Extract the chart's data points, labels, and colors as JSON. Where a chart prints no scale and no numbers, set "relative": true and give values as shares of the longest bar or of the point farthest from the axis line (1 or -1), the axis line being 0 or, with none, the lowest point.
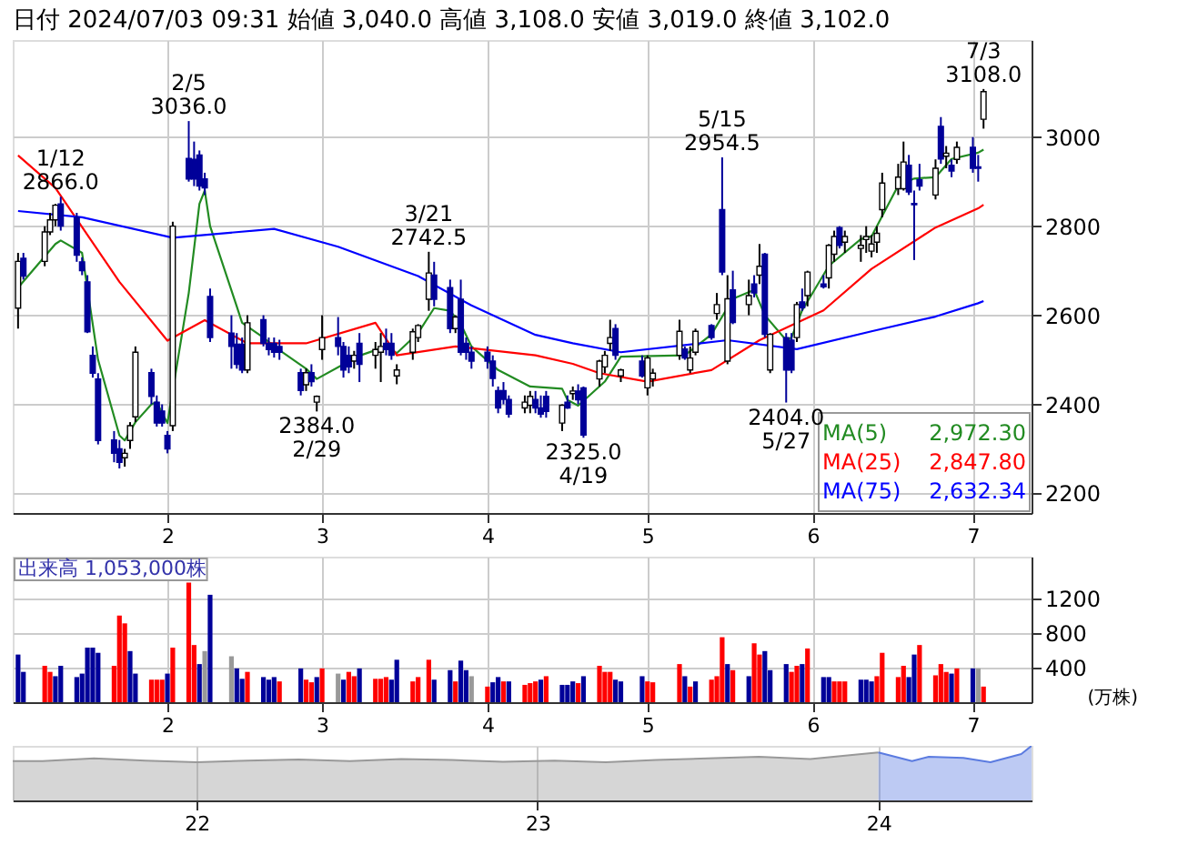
{
  "chart_data": [
    {
      "type": "candlestick",
      "title": "日付 2024/07/03 09:31 始値 3,040.0 高値 3,108.0 安値 3,019.0 終値 3,102.0",
      "x": [
        "2024-01-04",
        "2024-01-05",
        "2024-01-09",
        "2024-01-10",
        "2024-01-11",
        "2024-01-12",
        "2024-01-15",
        "2024-01-16",
        "2024-01-17",
        "2024-01-18",
        "2024-01-19",
        "2024-01-22",
        "2024-01-23",
        "2024-01-24",
        "2024-01-25",
        "2024-01-26",
        "2024-01-29",
        "2024-01-30",
        "2024-01-31",
        "2024-02-01",
        "2024-02-02",
        "2024-02-05",
        "2024-02-06",
        "2024-02-07",
        "2024-02-08",
        "2024-02-09",
        "2024-02-13",
        "2024-02-14",
        "2024-02-15",
        "2024-02-16",
        "2024-02-19",
        "2024-02-20",
        "2024-02-21",
        "2024-02-22",
        "2024-02-26",
        "2024-02-27",
        "2024-02-28",
        "2024-02-29",
        "2024-03-01",
        "2024-03-04",
        "2024-03-05",
        "2024-03-06",
        "2024-03-07",
        "2024-03-08",
        "2024-03-11",
        "2024-03-12",
        "2024-03-13",
        "2024-03-14",
        "2024-03-15",
        "2024-03-18",
        "2024-03-19",
        "2024-03-21",
        "2024-03-22",
        "2024-03-25",
        "2024-03-26",
        "2024-03-27",
        "2024-03-28",
        "2024-03-29",
        "2024-04-01",
        "2024-04-02",
        "2024-04-03",
        "2024-04-04",
        "2024-04-05",
        "2024-04-08",
        "2024-04-09",
        "2024-04-10",
        "2024-04-11",
        "2024-04-12",
        "2024-04-15",
        "2024-04-16",
        "2024-04-17",
        "2024-04-18",
        "2024-04-19",
        "2024-04-22",
        "2024-04-23",
        "2024-04-24",
        "2024-04-25",
        "2024-04-26",
        "2024-04-30",
        "2024-05-01",
        "2024-05-02",
        "2024-05-07",
        "2024-05-08",
        "2024-05-09",
        "2024-05-10",
        "2024-05-13",
        "2024-05-14",
        "2024-05-15",
        "2024-05-16",
        "2024-05-17",
        "2024-05-20",
        "2024-05-21",
        "2024-05-22",
        "2024-05-23",
        "2024-05-24",
        "2024-05-27",
        "2024-05-28",
        "2024-05-29",
        "2024-05-30",
        "2024-05-31",
        "2024-06-03",
        "2024-06-04",
        "2024-06-05",
        "2024-06-06",
        "2024-06-07",
        "2024-06-10",
        "2024-06-11",
        "2024-06-12",
        "2024-06-13",
        "2024-06-14",
        "2024-06-17",
        "2024-06-18",
        "2024-06-19",
        "2024-06-20",
        "2024-06-21",
        "2024-06-24",
        "2024-06-25",
        "2024-06-26",
        "2024-06-27",
        "2024-06-28",
        "2024-07-01",
        "2024-07-02",
        "2024-07-03"
      ],
      "ohlc": [
        [
          2616,
          2740,
          2570,
          2721
        ],
        [
          2728,
          2740,
          2680,
          2688
        ],
        [
          2721,
          2800,
          2710,
          2787
        ],
        [
          2787,
          2830,
          2780,
          2814
        ],
        [
          2814,
          2850,
          2800,
          2847
        ],
        [
          2850,
          2866,
          2790,
          2800
        ],
        [
          2820,
          2830,
          2720,
          2735
        ],
        [
          2720,
          2730,
          2690,
          2700
        ],
        [
          2675,
          2690,
          2560,
          2563
        ],
        [
          2510,
          2530,
          2460,
          2470
        ],
        [
          2457,
          2470,
          2310,
          2319
        ],
        [
          2320,
          2340,
          2270,
          2290
        ],
        [
          2300,
          2320,
          2256,
          2270
        ],
        [
          2280,
          2300,
          2260,
          2290
        ],
        [
          2319,
          2360,
          2300,
          2352
        ],
        [
          2372,
          2530,
          2360,
          2517
        ],
        [
          2471,
          2480,
          2400,
          2418
        ],
        [
          2405,
          2420,
          2350,
          2358
        ],
        [
          2385,
          2400,
          2350,
          2358
        ],
        [
          2330,
          2340,
          2290,
          2300
        ],
        [
          2352,
          2810,
          2340,
          2800
        ],
        [
          2952,
          3036,
          2900,
          2906
        ],
        [
          2950,
          2990,
          2890,
          2906
        ],
        [
          2960,
          2970,
          2880,
          2890
        ],
        [
          2906,
          2920,
          2870,
          2886
        ],
        [
          2642,
          2660,
          2540,
          2550
        ],
        [
          2560,
          2600,
          2480,
          2530
        ],
        [
          2535,
          2560,
          2480,
          2490
        ],
        [
          2535,
          2550,
          2470,
          2477
        ],
        [
          2477,
          2600,
          2470,
          2583
        ],
        [
          2590,
          2600,
          2530,
          2537
        ],
        [
          2537,
          2550,
          2510,
          2523
        ],
        [
          2537,
          2550,
          2505,
          2517
        ],
        [
          2530,
          2545,
          2500,
          2517
        ],
        [
          2471,
          2480,
          2420,
          2431
        ],
        [
          2444,
          2480,
          2430,
          2471
        ],
        [
          2471,
          2490,
          2440,
          2451
        ],
        [
          2405,
          2420,
          2384,
          2418
        ],
        [
          2523,
          2600,
          2500,
          2550
        ],
        [
          2550,
          2596,
          2510,
          2530
        ],
        [
          2530,
          2540,
          2460,
          2477
        ],
        [
          2510,
          2530,
          2470,
          2484
        ],
        [
          2497,
          2520,
          2480,
          2510
        ],
        [
          2537,
          2560,
          2450,
          2490
        ],
        [
          2510,
          2540,
          2480,
          2523
        ],
        [
          2517,
          2560,
          2450,
          2530
        ],
        [
          2537,
          2570,
          2510,
          2523
        ],
        [
          2537,
          2560,
          2500,
          2510
        ],
        [
          2464,
          2490,
          2445,
          2477
        ],
        [
          2517,
          2570,
          2500,
          2563
        ],
        [
          2550,
          2580,
          2540,
          2577
        ],
        [
          2636,
          2742.5,
          2610,
          2695
        ],
        [
          2690,
          2720,
          2620,
          2636
        ],
        [
          2662,
          2680,
          2560,
          2570
        ],
        [
          2570,
          2600,
          2560,
          2596
        ],
        [
          2636,
          2680,
          2510,
          2517
        ],
        [
          2537,
          2550,
          2500,
          2517
        ],
        [
          2517,
          2530,
          2480,
          2497
        ],
        [
          2517,
          2530,
          2480,
          2497
        ],
        [
          2497,
          2510,
          2440,
          2458
        ],
        [
          2431,
          2440,
          2380,
          2392
        ],
        [
          2431,
          2450,
          2400,
          2411
        ],
        [
          2411,
          2420,
          2370,
          2378
        ],
        [
          2392,
          2420,
          2380,
          2405
        ],
        [
          2398,
          2430,
          2380,
          2418
        ],
        [
          2411,
          2430,
          2380,
          2392
        ],
        [
          2392,
          2420,
          2370,
          2378
        ],
        [
          2418,
          2430,
          2370,
          2384
        ],
        [
          2358,
          2400,
          2340,
          2398
        ],
        [
          2405,
          2420,
          2390,
          2392
        ],
        [
          2424,
          2440,
          2410,
          2430
        ],
        [
          2430,
          2445,
          2400,
          2410
        ],
        [
          2437,
          2440,
          2325,
          2331
        ],
        [
          2457,
          2500,
          2440,
          2497
        ],
        [
          2484,
          2520,
          2470,
          2510
        ],
        [
          2537,
          2590,
          2520,
          2550
        ],
        [
          2570,
          2580,
          2500,
          2510
        ],
        [
          2464,
          2480,
          2450,
          2477
        ],
        [
          2497,
          2510,
          2460,
          2464
        ],
        [
          2437,
          2510,
          2420,
          2504
        ],
        [
          2457,
          2480,
          2440,
          2470
        ],
        [
          2510,
          2590,
          2500,
          2564
        ],
        [
          2524,
          2530,
          2500,
          2504
        ],
        [
          2477,
          2530,
          2470,
          2504
        ],
        [
          2517,
          2570,
          2510,
          2564
        ],
        [
          2577,
          2580,
          2545,
          2550
        ],
        [
          2604,
          2650,
          2590,
          2624
        ],
        [
          2837,
          2954.5,
          2690,
          2697
        ],
        [
          2497,
          2690,
          2490,
          2637
        ],
        [
          2657,
          2700,
          2580,
          2584
        ],
        [
          2624,
          2680,
          2600,
          2644
        ],
        [
          2670,
          2690,
          2640,
          2650
        ],
        [
          2690,
          2760,
          2670,
          2710
        ],
        [
          2737,
          2740,
          2550,
          2557
        ],
        [
          2477,
          2560,
          2470,
          2557
        ],
        [
          2550,
          2560,
          2404,
          2477
        ],
        [
          2544,
          2560,
          2470,
          2477
        ],
        [
          2550,
          2630,
          2540,
          2624
        ],
        [
          2630,
          2660,
          2610,
          2617
        ],
        [
          2644,
          2700,
          2620,
          2697
        ],
        [
          2670,
          2690,
          2660,
          2664
        ],
        [
          2684,
          2760,
          2660,
          2757
        ],
        [
          2737,
          2790,
          2720,
          2777
        ],
        [
          2797,
          2800,
          2750,
          2757
        ],
        [
          2764,
          2790,
          2740,
          2777
        ],
        [
          2750,
          2780,
          2720,
          2757
        ],
        [
          2770,
          2800,
          2740,
          2777
        ],
        [
          2744,
          2780,
          2730,
          2760
        ],
        [
          2764,
          2800,
          2740,
          2784
        ],
        [
          2837,
          2920,
          2820,
          2897
        ],
        [
          2884,
          2940,
          2870,
          2910
        ],
        [
          2884,
          2990,
          2880,
          2944
        ],
        [
          2937,
          2960,
          2870,
          2877
        ],
        [
          2851,
          2880,
          2724,
          2848
        ],
        [
          2904,
          2940,
          2880,
          2890
        ],
        [
          2870,
          2950,
          2860,
          2930
        ],
        [
          3024,
          3045,
          2940,
          2951
        ],
        [
          2957,
          2980,
          2930,
          2964
        ],
        [
          2937,
          2950,
          2910,
          2924
        ],
        [
          2950,
          2990,
          2940,
          2977
        ],
        [
          2977,
          3000,
          2920,
          2930
        ],
        [
          2933,
          2960,
          2900,
          2930
        ],
        [
          3040,
          3108,
          3019,
          3102
        ]
      ],
      "colors": [
        "#ffffff",
        "#000099",
        "#ffffff",
        "#ffffff",
        "#ffffff",
        "#000099",
        "#000099",
        "#000099",
        "#000099",
        "#000099",
        "#000099",
        "#000099",
        "#000099",
        "#ffffff",
        "#ffffff",
        "#ffffff",
        "#000099",
        "#000099",
        "#000099",
        "#000099",
        "#ffffff",
        "#000099",
        "#000099",
        "#000099",
        "#000099",
        "#000099",
        "#000099",
        "#000099",
        "#000099",
        "#ffffff",
        "#000099",
        "#000099",
        "#000099",
        "#000099",
        "#000099",
        "#ffffff",
        "#000099",
        "#ffffff",
        "#ffffff",
        "#000099",
        "#000099",
        "#000099",
        "#ffffff",
        "#000099",
        "#ffffff",
        "#ffffff",
        "#000099",
        "#000099",
        "#ffffff",
        "#ffffff",
        "#ffffff",
        "#ffffff",
        "#000099",
        "#000099",
        "#ffffff",
        "#000099",
        "#000099",
        "#000099",
        "#000099",
        "#000099",
        "#000099",
        "#000099",
        "#000099",
        "#ffffff",
        "#ffffff",
        "#000099",
        "#000099",
        "#000099",
        "#ffffff",
        "#000099",
        "#ffffff",
        "#000099",
        "#000099",
        "#ffffff",
        "#ffffff",
        "#ffffff",
        "#000099",
        "#ffffff",
        "#000099",
        "#ffffff",
        "#ffffff",
        "#ffffff",
        "#000099",
        "#ffffff",
        "#ffffff",
        "#000099",
        "#ffffff",
        "#000099",
        "#ffffff",
        "#000099",
        "#ffffff",
        "#000099",
        "#ffffff",
        "#000099",
        "#ffffff",
        "#000099",
        "#000099",
        "#ffffff",
        "#000099",
        "#ffffff",
        "#000099",
        "#ffffff",
        "#ffffff",
        "#000099",
        "#ffffff",
        "#ffffff",
        "#ffffff",
        "#ffffff",
        "#ffffff",
        "#ffffff",
        "#ffffff",
        "#ffffff",
        "#000099",
        "#000099",
        "#000099",
        "#ffffff",
        "#000099",
        "#ffffff",
        "#000099",
        "#ffffff",
        "#000099",
        "#000099",
        "#ffffff"
      ],
      "series": [
        {
          "name": "MA(5)",
          "type": "line",
          "color": "#228b22",
          "x": [
            "2024-01-04",
            "2024-01-11",
            "2024-01-12",
            "2024-01-16",
            "2024-01-19",
            "2024-01-23",
            "2024-01-24",
            "2024-01-26",
            "2024-01-29",
            "2024-01-30",
            "2024-01-31",
            "2024-02-01",
            "2024-02-05",
            "2024-02-07",
            "2024-02-08",
            "2024-02-09",
            "2024-02-14",
            "2024-02-15",
            "2024-02-19",
            "2024-02-21",
            "2024-02-27",
            "2024-02-29",
            "2024-03-05",
            "2024-03-07",
            "2024-03-13",
            "2024-03-15",
            "2024-03-19",
            "2024-03-22",
            "2024-03-25",
            "2024-03-27",
            "2024-03-29",
            "2024-04-03",
            "2024-04-09",
            "2024-04-15",
            "2024-04-16",
            "2024-04-18",
            "2024-04-23",
            "2024-04-26",
            "2024-05-08",
            "2024-05-13",
            "2024-05-17",
            "2024-05-21",
            "2024-05-23",
            "2024-05-27",
            "2024-05-28",
            "2024-05-30",
            "2024-06-04",
            "2024-06-10",
            "2024-06-12",
            "2024-06-17",
            "2024-06-20",
            "2024-06-24",
            "2024-06-27",
            "2024-07-02",
            "2024-07-03"
          ],
          "values": [
            2662,
            2760,
            2768,
            2740,
            2500,
            2330,
            2319,
            2360,
            2400,
            2405,
            2380,
            2358,
            2650,
            2850,
            2880,
            2800,
            2620,
            2583,
            2550,
            2530,
            2480,
            2457,
            2490,
            2505,
            2530,
            2515,
            2560,
            2616,
            2610,
            2580,
            2530,
            2477,
            2440,
            2435,
            2410,
            2397,
            2451,
            2507,
            2510,
            2557,
            2637,
            2657,
            2600,
            2544,
            2550,
            2611,
            2711,
            2771,
            2777,
            2891,
            2907,
            2910,
            2951,
            2965,
            2972
          ]
        },
        {
          "name": "MA(25)",
          "type": "line",
          "color": "#ff0000",
          "x": [
            "2024-01-04",
            "2024-01-11",
            "2024-01-23",
            "2024-02-01",
            "2024-02-08",
            "2024-02-16",
            "2024-02-27",
            "2024-03-11",
            "2024-03-15",
            "2024-03-26",
            "2024-04-10",
            "2024-04-17",
            "2024-04-22",
            "2024-05-01",
            "2024-05-13",
            "2024-05-22",
            "2024-06-03",
            "2024-06-12",
            "2024-06-24",
            "2024-07-02",
            "2024-07-03"
          ],
          "values": [
            2959,
            2886,
            2675,
            2543,
            2589,
            2537,
            2537,
            2583,
            2510,
            2530,
            2510,
            2491,
            2470,
            2451,
            2477,
            2544,
            2611,
            2704,
            2797,
            2840,
            2848
          ]
        },
        {
          "name": "MA(75)",
          "type": "line",
          "color": "#0000ff",
          "x": [
            "2024-01-04",
            "2024-01-16",
            "2024-02-02",
            "2024-02-21",
            "2024-03-04",
            "2024-03-19",
            "2024-03-29",
            "2024-04-10",
            "2024-04-17",
            "2024-04-26",
            "2024-05-16",
            "2024-05-29",
            "2024-06-12",
            "2024-06-24",
            "2024-07-02",
            "2024-07-03"
          ],
          "values": [
            2834,
            2820,
            2774,
            2794,
            2754,
            2688,
            2622,
            2556,
            2537,
            2517,
            2544,
            2524,
            2564,
            2597,
            2627,
            2632
          ]
        }
      ],
      "annotations": [
        "2,972.30",
        "2,847.80",
        "2,632.34",
        {
          "text": "1/12\n2866.0",
          "x": "2024-01-12",
          "y": 2866
        },
        {
          "text": "2/5\n3036.0",
          "x": "2024-02-05",
          "y": 3036
        },
        {
          "text": "2384.0\n2/29",
          "x": "2024-02-29",
          "y": 2384
        },
        {
          "text": "3/21\n2742.5",
          "x": "2024-03-21",
          "y": 2742.5
        },
        {
          "text": "2325.0\n4/19",
          "x": "2024-04-19",
          "y": 2325
        },
        {
          "text": "5/15\n2954.5",
          "x": "2024-05-15",
          "y": 2954.5
        },
        {
          "text": "2404.0\n5/27",
          "x": "2024-05-27",
          "y": 2404
        },
        {
          "text": "7/3\n3108.0",
          "x": "2024-07-03",
          "y": 3108
        }
      ],
      "xlim": [
        "2024-01-03",
        "2024-07-12"
      ],
      "xticks": [
        {
          "value": "2024-02-01",
          "label": "2"
        },
        {
          "value": "2024-03-01",
          "label": "3"
        },
        {
          "value": "2024-04-01",
          "label": "4"
        },
        {
          "value": "2024-05-01",
          "label": "5"
        },
        {
          "value": "2024-06-01",
          "label": "6"
        },
        {
          "value": "2024-07-01",
          "label": "7"
        }
      ],
      "ylim": [
        2156,
        3218
      ],
      "yticks": [
        2200,
        2400,
        2600,
        2800,
        3000
      ],
      "grid": true,
      "legend": "bottom right"
    },
    {
      "type": "bar",
      "title": "出来高 1,053,000株",
      "ylabel": "(万株)",
      "x": [
        "2024-01-04",
        "2024-01-05",
        "2024-01-09",
        "2024-01-10",
        "2024-01-11",
        "2024-01-12",
        "2024-01-15",
        "2024-01-16",
        "2024-01-17",
        "2024-01-18",
        "2024-01-19",
        "2024-01-22",
        "2024-01-23",
        "2024-01-24",
        "2024-01-25",
        "2024-01-26",
        "2024-01-29",
        "2024-01-30",
        "2024-01-31",
        "2024-02-01",
        "2024-02-02",
        "2024-02-05",
        "2024-02-06",
        "2024-02-07",
        "2024-02-08",
        "2024-02-09",
        "2024-02-13",
        "2024-02-14",
        "2024-02-15",
        "2024-02-16",
        "2024-02-19",
        "2024-02-20",
        "2024-02-21",
        "2024-02-22",
        "2024-02-26",
        "2024-02-27",
        "2024-02-28",
        "2024-02-29",
        "2024-03-01",
        "2024-03-04",
        "2024-03-05",
        "2024-03-06",
        "2024-03-07",
        "2024-03-08",
        "2024-03-11",
        "2024-03-12",
        "2024-03-13",
        "2024-03-14",
        "2024-03-15",
        "2024-03-18",
        "2024-03-19",
        "2024-03-21",
        "2024-03-22",
        "2024-03-25",
        "2024-03-26",
        "2024-03-27",
        "2024-03-28",
        "2024-03-29",
        "2024-04-01",
        "2024-04-02",
        "2024-04-03",
        "2024-04-04",
        "2024-04-05",
        "2024-04-08",
        "2024-04-09",
        "2024-04-10",
        "2024-04-11",
        "2024-04-12",
        "2024-04-15",
        "2024-04-16",
        "2024-04-17",
        "2024-04-18",
        "2024-04-19",
        "2024-04-22",
        "2024-04-23",
        "2024-04-24",
        "2024-04-25",
        "2024-04-26",
        "2024-04-30",
        "2024-05-01",
        "2024-05-02",
        "2024-05-07",
        "2024-05-08",
        "2024-05-09",
        "2024-05-10",
        "2024-05-13",
        "2024-05-14",
        "2024-05-15",
        "2024-05-16",
        "2024-05-17",
        "2024-05-20",
        "2024-05-21",
        "2024-05-22",
        "2024-05-23",
        "2024-05-24",
        "2024-05-27",
        "2024-05-28",
        "2024-05-29",
        "2024-05-30",
        "2024-05-31",
        "2024-06-03",
        "2024-06-04",
        "2024-06-05",
        "2024-06-06",
        "2024-06-07",
        "2024-06-10",
        "2024-06-11",
        "2024-06-12",
        "2024-06-13",
        "2024-06-14",
        "2024-06-17",
        "2024-06-18",
        "2024-06-19",
        "2024-06-20",
        "2024-06-21",
        "2024-06-24",
        "2024-06-25",
        "2024-06-26",
        "2024-06-27",
        "2024-06-28",
        "2024-07-01",
        "2024-07-02",
        "2024-07-03"
      ],
      "values": [
        550,
        350,
        420,
        350,
        300,
        420,
        290,
        330,
        630,
        630,
        570,
        420,
        1000,
        910,
        590,
        330,
        260,
        260,
        260,
        330,
        630,
        1380,
        660,
        440,
        590,
        1240,
        530,
        390,
        270,
        350,
        290,
        260,
        290,
        240,
        390,
        260,
        230,
        290,
        390,
        330,
        260,
        350,
        300,
        390,
        270,
        270,
        290,
        260,
        490,
        240,
        290,
        490,
        260,
        370,
        240,
        480,
        370,
        300,
        180,
        230,
        290,
        240,
        240,
        200,
        220,
        240,
        260,
        300,
        200,
        200,
        240,
        220,
        300,
        420,
        350,
        350,
        260,
        240,
        300,
        240,
        230,
        440,
        300,
        180,
        240,
        260,
        300,
        750,
        440,
        370,
        300,
        680,
        550,
        590,
        370,
        440,
        350,
        420,
        440,
        620,
        290,
        290,
        240,
        240,
        240,
        260,
        260,
        240,
        300,
        570,
        290,
        420,
        290,
        550,
        660,
        310,
        440,
        350,
        330,
        390,
        390,
        390,
        180
      ],
      "colors": [
        "#000099",
        "#000099",
        "#ff0000",
        "#ff0000",
        "#000099",
        "#000099",
        "#000099",
        "#000099",
        "#000099",
        "#000099",
        "#000099",
        "#ff0000",
        "#ff0000",
        "#ff0000",
        "#000099",
        "#000099",
        "#ff0000",
        "#ff0000",
        "#ff0000",
        "#000099",
        "#ff0000",
        "#ff0000",
        "#ff0000",
        "#000099",
        "#999999",
        "#000099",
        "#999999",
        "#000099",
        "#000099",
        "#ff0000",
        "#000099",
        "#000099",
        "#000099",
        "#ff0000",
        "#000099",
        "#ff0000",
        "#ff0000",
        "#000099",
        "#ff0000",
        "#999999",
        "#000099",
        "#ff0000",
        "#ff0000",
        "#000099",
        "#ff0000",
        "#ff0000",
        "#ff0000",
        "#000099",
        "#000099",
        "#ff0000",
        "#ff0000",
        "#ff0000",
        "#000099",
        "#000099",
        "#ff0000",
        "#000099",
        "#000099",
        "#999999",
        "#ff0000",
        "#000099",
        "#000099",
        "#ff0000",
        "#000099",
        "#ff0000",
        "#ff0000",
        "#ff0000",
        "#000099",
        "#ff0000",
        "#000099",
        "#000099",
        "#000099",
        "#ff0000",
        "#000099",
        "#ff0000",
        "#ff0000",
        "#ff0000",
        "#000099",
        "#000099",
        "#000099",
        "#ff0000",
        "#ff0000",
        "#ff0000",
        "#000099",
        "#ff0000",
        "#000099",
        "#ff0000",
        "#ff0000",
        "#ff0000",
        "#000099",
        "#ff0000",
        "#000099",
        "#ff0000",
        "#ff0000",
        "#000099",
        "#000099",
        "#000099",
        "#ff0000",
        "#ff0000",
        "#000099",
        "#ff0000",
        "#000099",
        "#000099",
        "#ff0000",
        "#ff0000",
        "#ff0000",
        "#000099",
        "#000099",
        "#000099",
        "#ff0000",
        "#ff0000",
        "#ff0000",
        "#ff0000",
        "#000099",
        "#000099",
        "#ff0000",
        "#ff0000",
        "#ff0000",
        "#ff0000",
        "#000099",
        "#ff0000",
        "#000099",
        "#999999",
        "#ff0000"
      ],
      "xlim": [
        "2024-01-03",
        "2024-07-12"
      ],
      "xticks": [
        {
          "value": "2024-02-01",
          "label": "2"
        },
        {
          "value": "2024-03-01",
          "label": "3"
        },
        {
          "value": "2024-04-01",
          "label": "4"
        },
        {
          "value": "2024-05-01",
          "label": "5"
        },
        {
          "value": "2024-06-01",
          "label": "6"
        },
        {
          "value": "2024-07-01",
          "label": "7"
        }
      ],
      "ylim": [
        0,
        1680
      ],
      "yticks": [
        400,
        800,
        1200
      ],
      "grid": true
    },
    {
      "type": "area",
      "relative": true,
      "series": [
        {
          "color": "#999999",
          "x": [
            "2021-06-18",
            "2021-07-20",
            "2021-09-13",
            "2021-11-07",
            "2022-01-01",
            "2022-02-24",
            "2022-04-20",
            "2022-06-14",
            "2022-08-08",
            "2022-10-01",
            "2022-11-25",
            "2023-01-19",
            "2023-03-15",
            "2023-05-08",
            "2023-07-02",
            "2023-08-26",
            "2023-10-20",
            "2023-12-14",
            "2024-01-01"
          ],
          "values": [
            0.72,
            0.72,
            0.77,
            0.73,
            0.7,
            0.73,
            0.75,
            0.72,
            0.76,
            0.74,
            0.71,
            0.73,
            0.7,
            0.74,
            0.77,
            0.8,
            0.76,
            0.85,
            0.88
          ]
        },
        {
          "color": "#5b7be0",
          "x": [
            "2024-01-01",
            "2024-02-06",
            "2024-02-24",
            "2024-04-01",
            "2024-04-30",
            "2024-06-02",
            "2024-06-13"
          ],
          "values": [
            0.88,
            0.72,
            0.8,
            0.78,
            0.7,
            0.85,
            1.0
          ]
        }
      ],
      "xlim": [
        "2021-06-18",
        "2024-06-13"
      ],
      "xticks": [
        {
          "value": "2022-01-01",
          "label": "22"
        },
        {
          "value": "2023-01-01",
          "label": "23"
        },
        {
          "value": "2024-01-01",
          "label": "24"
        }
      ],
      "grid": "x"
    }
  ]
}
